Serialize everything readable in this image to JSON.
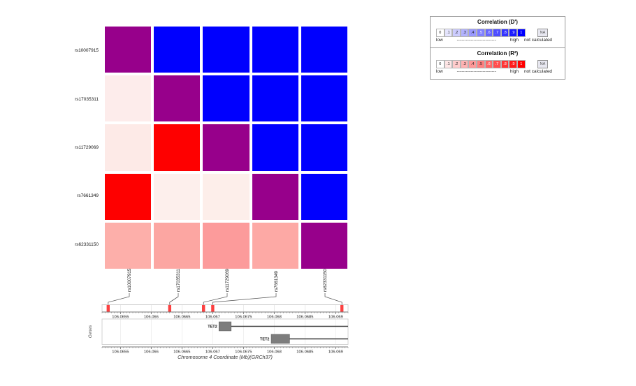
{
  "legend": {
    "dprime": {
      "title": "Correlation (D')",
      "scale": [
        {
          "label": "0",
          "color": "#ffffff"
        },
        {
          "label": ".1",
          "color": "#e6e6ff"
        },
        {
          "label": ".2",
          "color": "#ccccff"
        },
        {
          "label": ".3",
          "color": "#b3b3ff"
        },
        {
          "label": ".4",
          "color": "#9999ff"
        },
        {
          "label": ".5",
          "color": "#8080ff"
        },
        {
          "label": ".6",
          "color": "#6666ff"
        },
        {
          "label": ".7",
          "color": "#4d4dff"
        },
        {
          "label": ".8",
          "color": "#3333ff"
        },
        {
          "label": ".9",
          "color": "#1a1aff"
        },
        {
          "label": "1",
          "color": "#0000ff"
        }
      ],
      "low": "low",
      "high": "high",
      "dashes": "--------------------------",
      "na_label": "NA",
      "na_color": "#e7e7f0",
      "na_text": "not calculated"
    },
    "r2": {
      "title": "Correlation (R²)",
      "scale": [
        {
          "label": "0",
          "color": "#ffffff"
        },
        {
          "label": ".1",
          "color": "#ffe6e6"
        },
        {
          "label": ".2",
          "color": "#ffcccc"
        },
        {
          "label": ".3",
          "color": "#ffb3b3"
        },
        {
          "label": ".4",
          "color": "#ff9999"
        },
        {
          "label": ".5",
          "color": "#ff8080"
        },
        {
          "label": ".6",
          "color": "#ff6666"
        },
        {
          "label": ".7",
          "color": "#ff4d4d"
        },
        {
          "label": ".8",
          "color": "#ff3333"
        },
        {
          "label": ".9",
          "color": "#ff1a1a"
        },
        {
          "label": "1",
          "color": "#ff0000"
        }
      ],
      "low": "low",
      "high": "high",
      "dashes": "--------------------------",
      "na_label": "NA",
      "na_color": "#e7e7f0",
      "na_text": "not calculated"
    }
  },
  "chart_data": {
    "type": "heatmap",
    "snps": [
      "rs10007915",
      "rs17035311",
      "rs11729069",
      "rs7661349",
      "rs62331150"
    ],
    "snp_positions_mb": [
      106.0653,
      106.0663,
      106.06685,
      106.067,
      106.0691
    ],
    "upper_triangle_metric": "D'",
    "lower_triangle_metric": "R²",
    "matrix_values": [
      [
        null,
        1.0,
        1.0,
        1.0,
        1.0
      ],
      [
        0.06,
        null,
        1.0,
        1.0,
        1.0
      ],
      [
        0.07,
        1.0,
        null,
        1.0,
        1.0
      ],
      [
        1.0,
        0.05,
        0.06,
        null,
        1.0
      ],
      [
        0.32,
        0.34,
        0.38,
        0.33,
        null
      ]
    ],
    "cell_colors": [
      [
        "#97008b",
        "#0000fe",
        "#0000fe",
        "#0000fe",
        "#0000fe"
      ],
      [
        "#fdeceb",
        "#97008b",
        "#0000fe",
        "#0000fe",
        "#0000fe"
      ],
      [
        "#fdeae7",
        "#fe0000",
        "#97008b",
        "#0000fe",
        "#0000fe"
      ],
      [
        "#fe0000",
        "#fdefec",
        "#fdeeea",
        "#97008b",
        "#0000fe"
      ],
      [
        "#fdafaa",
        "#fca6a2",
        "#fc9b9b",
        "#fda9a5",
        "#97008b"
      ]
    ],
    "diagonal_color": "#97008b",
    "snp_marker_color": "#fb4141",
    "axis": {
      "range_mb": [
        106.0652,
        106.0692
      ],
      "major_tick_values": [
        106.0655,
        106.066,
        106.0665,
        106.067,
        106.0675,
        106.068,
        106.0685,
        106.069
      ],
      "major_tick_labels": [
        "106.0655",
        "106.066",
        "106.0665",
        "106.067",
        "106.0675",
        "106.068",
        "106.0685",
        "106.069"
      ],
      "minor_tick_step_mb": 5e-05,
      "xlabel": "Chromosome 4 Coordinate (Mb)(GRCh37)"
    },
    "genes_track_label": "Genes",
    "genes": [
      {
        "name": "TET2",
        "exon_start_mb": 106.0671,
        "exon_end_mb": 106.0673,
        "line_end_mb": 106.0692
      },
      {
        "name": "TET2",
        "exon_start_mb": 106.06795,
        "exon_end_mb": 106.06825,
        "line_end_mb": 106.0692
      }
    ]
  }
}
